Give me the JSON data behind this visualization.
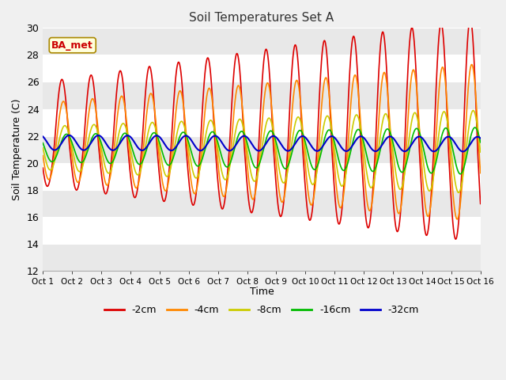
{
  "title": "Soil Temperatures Set A",
  "xlabel": "Time",
  "ylabel": "Soil Temperature (C)",
  "ylim": [
    12,
    30
  ],
  "xlim": [
    0,
    15
  ],
  "annotation": "BA_met",
  "annotation_color": "#cc0000",
  "annotation_bg": "#ffffdd",
  "annotation_border": "#aa8800",
  "yticks": [
    12,
    14,
    16,
    18,
    20,
    22,
    24,
    26,
    28,
    30
  ],
  "xtick_labels": [
    "Oct 1",
    "Oct 2",
    "Oct 3",
    "Oct 4",
    "Oct 5",
    "Oct 6",
    "Oct 7",
    "Oct 8",
    "Oct 9",
    "Oct 10",
    "Oct 11",
    "Oct 12",
    "Oct 13",
    "Oct 14",
    "Oct 15",
    "Oct 16"
  ],
  "series": {
    "2cm": {
      "color": "#dd0000",
      "label": "-2cm"
    },
    "4cm": {
      "color": "#ff8800",
      "label": "-4cm"
    },
    "8cm": {
      "color": "#cccc00",
      "label": "-8cm"
    },
    "16cm": {
      "color": "#00bb00",
      "label": "-16cm"
    },
    "32cm": {
      "color": "#0000cc",
      "label": "-32cm"
    }
  },
  "fig_width": 6.4,
  "fig_height": 4.8,
  "dpi": 100
}
